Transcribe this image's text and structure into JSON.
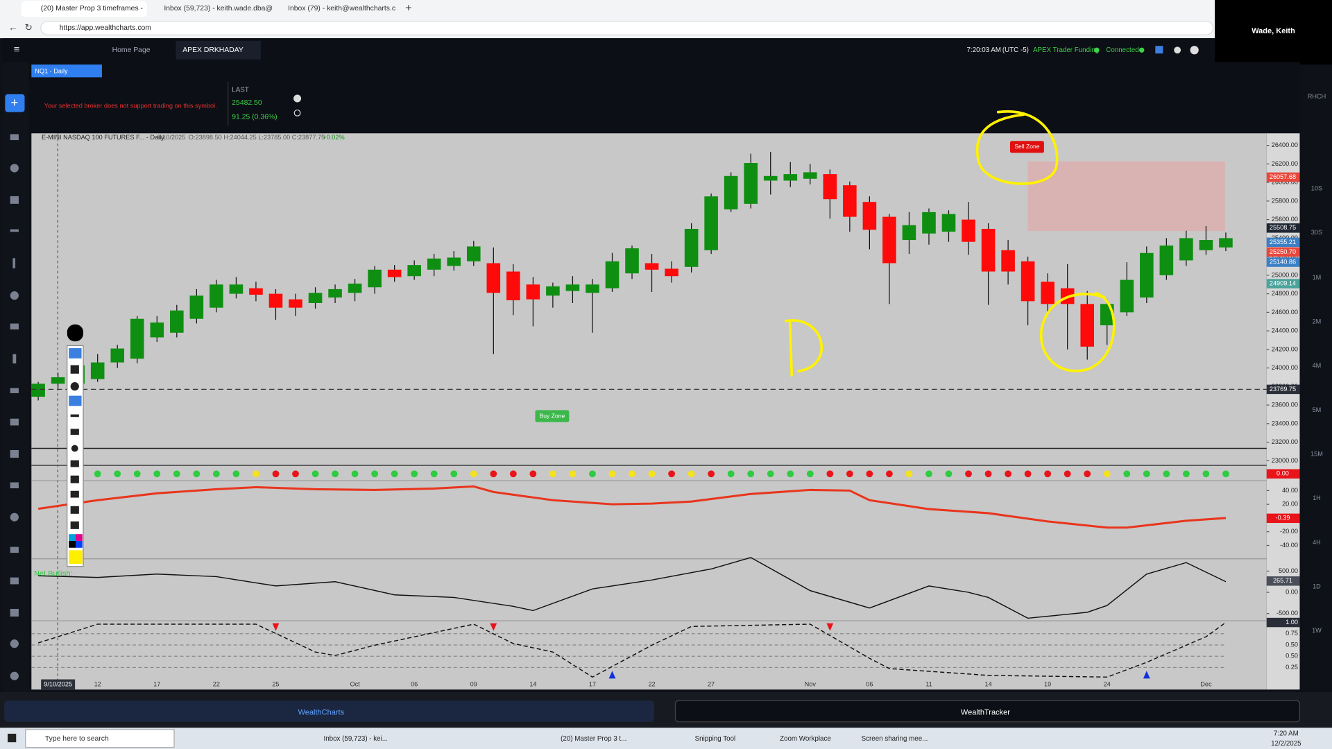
{
  "browser": {
    "tabs": [
      "(20) Master Prop 3 timeframes - ",
      "Inbox (59,723) - keith.wade.dba@",
      "Inbox (79) - keith@wealthcharts.c"
    ],
    "url": "https://app.wealthcharts.com",
    "user": "Wade, Keith"
  },
  "app": {
    "tabs": [
      "Home Page",
      "APEX DRKHADAY"
    ],
    "clock": "7:20:03 AM",
    "timezone": "(UTC -5)",
    "account": "APEX Trader Funding",
    "status": "Connected",
    "symbol_tab": "NQ1 - Daily",
    "broker_message": "Your selected broker does not support trading on this symbol.",
    "last_label": "LAST",
    "last_price": "25482.50",
    "last_change": "91.25 (0.36%)",
    "timeframes": [
      "RHCH",
      "10S",
      "30S",
      "1M",
      "2M",
      "4M",
      "5M",
      "15M",
      "1H",
      "4H",
      "1D",
      "1W"
    ],
    "footer": [
      "WealthCharts",
      "WealthTracker"
    ]
  },
  "chart_data": [
    {
      "type": "candlestick",
      "title": "E-MINI NASDAQ 100 FUTURES F... - Daily",
      "ohlc_header": "O:23898.50 H:24044.25 L:23785.00 C:23877.75",
      "change": "+0.02%",
      "categories": [
        null,
        "9/10/2025",
        null,
        "12",
        null,
        null,
        "17",
        null,
        null,
        "22",
        null,
        null,
        "25",
        null,
        null,
        null,
        "Oct",
        null,
        null,
        "06",
        null,
        null,
        "09",
        null,
        null,
        "14",
        null,
        null,
        "17",
        null,
        null,
        "22",
        null,
        null,
        "27",
        null,
        null,
        null,
        null,
        "Nov",
        null,
        null,
        "06",
        null,
        null,
        "11",
        null,
        null,
        "14",
        null,
        null,
        "19",
        null,
        null,
        "24",
        null,
        null,
        null,
        null,
        "Dec",
        null
      ],
      "open": [
        23690,
        23830,
        23830,
        23880,
        24060,
        24100,
        24330,
        24380,
        24530,
        24650,
        24800,
        24860,
        24800,
        24740,
        24700,
        24760,
        24810,
        24870,
        25060,
        24990,
        25060,
        25100,
        25150,
        25130,
        25040,
        24900,
        24780,
        24830,
        24810,
        24860,
        25020,
        25130,
        25070,
        25090,
        25270,
        25710,
        25770,
        26020,
        26020,
        26040,
        26090,
        25970,
        25790,
        25630,
        25380,
        25450,
        25470,
        25600,
        25500,
        25270,
        25150,
        24930,
        24860,
        24690,
        24460,
        24600,
        24760,
        25000,
        25160,
        25270,
        25300
      ],
      "high": [
        23850,
        23950,
        24080,
        24150,
        24250,
        24560,
        24560,
        24680,
        24850,
        24950,
        24980,
        24930,
        24850,
        24800,
        24870,
        24900,
        24960,
        25100,
        25110,
        25160,
        25230,
        25260,
        25370,
        25300,
        25120,
        24980,
        24920,
        24990,
        24960,
        25240,
        25320,
        25230,
        25150,
        25560,
        25880,
        26110,
        26310,
        26330,
        26220,
        26200,
        26140,
        26010,
        25850,
        25660,
        25680,
        25720,
        25700,
        25790,
        25560,
        25380,
        25200,
        25020,
        25120,
        24830,
        24740,
        25140,
        25310,
        25400,
        25480,
        25530,
        25460
      ],
      "low": [
        23650,
        23780,
        23800,
        23850,
        24000,
        24050,
        24280,
        24330,
        24480,
        24600,
        24750,
        24720,
        24520,
        24560,
        24640,
        24700,
        24720,
        24800,
        24930,
        24950,
        24990,
        25050,
        25100,
        24150,
        24570,
        24450,
        24650,
        24700,
        24380,
        24820,
        24960,
        24820,
        24920,
        25030,
        25230,
        25680,
        25720,
        25870,
        25950,
        25980,
        25610,
        25470,
        25280,
        24690,
        25230,
        25330,
        25360,
        25220,
        24680,
        24900,
        24460,
        24580,
        24200,
        24090,
        24250,
        24560,
        24700,
        24950,
        25100,
        25220,
        25260
      ],
      "close": [
        23830,
        23900,
        24030,
        24060,
        24210,
        24530,
        24490,
        24620,
        24780,
        24900,
        24900,
        24790,
        24650,
        24650,
        24810,
        24850,
        24910,
        25060,
        24980,
        25110,
        25180,
        25190,
        25310,
        24810,
        24730,
        24740,
        24880,
        24900,
        24900,
        25150,
        25290,
        25060,
        24990,
        25500,
        25850,
        26070,
        26210,
        26070,
        26090,
        26110,
        25820,
        25630,
        25490,
        25130,
        25540,
        25680,
        25660,
        25360,
        25040,
        25040,
        24720,
        24690,
        24690,
        24230,
        24690,
        24950,
        25240,
        25320,
        25400,
        25380,
        25400
      ],
      "up_color": "#0f8f12",
      "down_color": "#ff0a0a",
      "ylim": [
        22950,
        26530
      ],
      "yticks": [
        {
          "value": 26400,
          "label": "26400.00"
        },
        {
          "value": 26200,
          "label": "26200.00"
        },
        {
          "value": 26000,
          "label": "26000.00"
        },
        {
          "value": 25800,
          "label": "25800.00"
        },
        {
          "value": 25600,
          "label": "25600.00"
        },
        {
          "value": 25400,
          "label": "25400.00"
        },
        {
          "value": 25200,
          "label": "25200.00"
        },
        {
          "value": 25000,
          "label": "25000.00"
        },
        {
          "value": 24800,
          "label": "24800.00"
        },
        {
          "value": 24600,
          "label": "24600.00"
        },
        {
          "value": 24400,
          "label": "24400.00"
        },
        {
          "value": 24200,
          "label": "24200.00"
        },
        {
          "value": 24000,
          "label": "24000.00"
        },
        {
          "value": 23800,
          "label": "23800.00"
        },
        {
          "value": 23600,
          "label": "23600.00"
        },
        {
          "value": 23400,
          "label": "23400.00"
        },
        {
          "value": 23200,
          "label": "23200.00"
        },
        {
          "value": 23000,
          "label": "23000.00"
        }
      ],
      "price_labels": [
        {
          "value": 26057.68,
          "label": "26057.68",
          "color": "#e8483c"
        },
        {
          "value": 25508.75,
          "label": "25508.75",
          "color": "#1f2633"
        },
        {
          "value": 25355.21,
          "label": "25355.21",
          "color": "#3b7fc4"
        },
        {
          "value": 25250.7,
          "label": "25250.70",
          "color": "#e8483c"
        },
        {
          "value": 25140.86,
          "label": "25140.86",
          "color": "#3b7fc4"
        },
        {
          "value": 24909.14,
          "label": "24909.14",
          "color": "#4aa39b"
        },
        {
          "value": 23769.75,
          "label": "23769.75",
          "color": "#2a2e39",
          "dashed": true
        }
      ],
      "annotations": [
        {
          "text": "Sell Zone",
          "color": "#e01010"
        },
        {
          "text": "Buy Zone",
          "color": "#3cb84a"
        }
      ]
    },
    {
      "type": "dots",
      "colors": [
        null,
        null,
        null,
        "#2ecc40",
        "#2ecc40",
        "#2ecc40",
        "#2ecc40",
        "#2ecc40",
        "#2ecc40",
        "#2ecc40",
        "#2ecc40",
        "#f5e11c",
        "#e8141a",
        "#e8141a",
        "#2ecc40",
        "#2ecc40",
        "#2ecc40",
        "#2ecc40",
        "#2ecc40",
        "#2ecc40",
        "#2ecc40",
        "#2ecc40",
        "#f5e11c",
        "#e8141a",
        "#e8141a",
        "#e8141a",
        "#f5e11c",
        "#f5e11c",
        "#2ecc40",
        "#f5e11c",
        "#f5e11c",
        "#f5e11c",
        "#e8141a",
        "#f5e11c",
        "#e8141a",
        "#2ecc40",
        "#2ecc40",
        "#2ecc40",
        "#2ecc40",
        "#2ecc40",
        "#e8141a",
        "#e8141a",
        "#e8141a",
        "#e8141a",
        "#f5e11c",
        "#2ecc40",
        "#2ecc40",
        "#e8141a",
        "#e8141a",
        "#e8141a",
        "#e8141a",
        "#e8141a",
        "#e8141a",
        "#e8141a",
        "#f5e11c",
        "#2ecc40",
        "#2ecc40",
        "#2ecc40",
        "#2ecc40",
        "#2ecc40",
        "#2ecc40"
      ],
      "last_value": {
        "value": 0,
        "label": "0.00"
      }
    },
    {
      "type": "line",
      "x": [
        0,
        3,
        6,
        9,
        11,
        14,
        17,
        20,
        22,
        23,
        26,
        29,
        31,
        33,
        36,
        39,
        41,
        42,
        45,
        48,
        51,
        54,
        55,
        58,
        60
      ],
      "values": [
        13.5,
        26,
        36,
        42,
        45,
        42,
        41,
        43,
        46,
        38,
        26,
        20,
        21,
        24,
        35,
        41,
        40,
        26,
        13,
        7,
        -5,
        -14,
        -14,
        -4,
        0
      ],
      "color": "#e8361e",
      "ylim": [
        -52,
        52
      ],
      "yticks": [
        {
          "value": 40,
          "label": "40.00"
        },
        {
          "value": 20,
          "label": "20.00"
        },
        {
          "value": -20,
          "label": "-20.00"
        },
        {
          "value": -40,
          "label": "-40.00"
        }
      ],
      "last_value": {
        "value": -0.39,
        "label": "-0.39"
      }
    },
    {
      "type": "line",
      "label": "Net Bullish:",
      "x": [
        0,
        3,
        6,
        9,
        12,
        15,
        18,
        21,
        24,
        25,
        28,
        31,
        34,
        36,
        39,
        42,
        45,
        47,
        48,
        50,
        53,
        54,
        56,
        58,
        60
      ],
      "values": [
        390,
        350,
        430,
        370,
        150,
        250,
        -60,
        -120,
        -330,
        -430,
        80,
        290,
        550,
        820,
        40,
        -370,
        150,
        0,
        -120,
        -610,
        -470,
        -310,
        430,
        700,
        250
      ],
      "color": "#111111",
      "ylim": [
        -650,
        750
      ],
      "yticks": [
        {
          "value": 500,
          "label": "500.00"
        },
        {
          "value": 0,
          "label": "0.00"
        },
        {
          "value": -500,
          "label": "-500.00"
        }
      ],
      "last_value": {
        "value": 265.71,
        "label": "265.71"
      }
    },
    {
      "type": "line",
      "dashed": true,
      "x": [
        0,
        3,
        11,
        14,
        15,
        17,
        22,
        24,
        26,
        28,
        31,
        33,
        39,
        42,
        43,
        48,
        54,
        56,
        59,
        60
      ],
      "values": [
        0.64,
        0.97,
        0.97,
        0.48,
        0.42,
        0.6,
        0.97,
        0.63,
        0.48,
        0.04,
        0.6,
        0.93,
        0.97,
        0.37,
        0.19,
        0.07,
        0.04,
        0.3,
        0.75,
        1
      ],
      "color": "#111111",
      "ylim": [
        0,
        1
      ],
      "y_labels": [
        "1.00",
        "0.75",
        "0.50",
        "0.50",
        "0.25"
      ],
      "sell_signals": [
        12,
        23,
        40
      ],
      "buy_signals": [
        29,
        56
      ]
    }
  ],
  "taskbar": {
    "search": "Type here to search",
    "apps": [
      "Inbox (59,723) - kei...",
      "(20) Master Prop 3 t...",
      "Snipping Tool",
      "Zoom Workplace",
      "Screen sharing mee..."
    ],
    "time": "7:20 AM",
    "date": "12/2/2025"
  }
}
